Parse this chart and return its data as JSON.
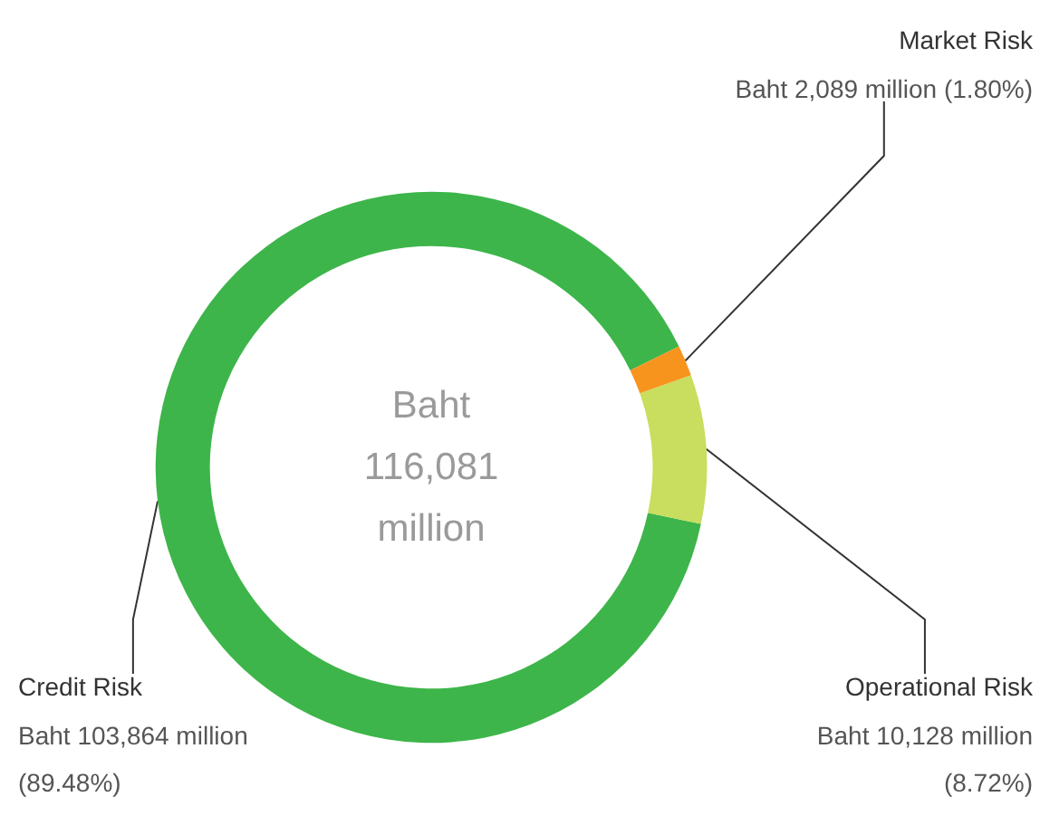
{
  "chart_data": {
    "type": "donut",
    "categories": [
      "Credit Risk",
      "Operational Risk",
      "Market Risk"
    ],
    "values": [
      89.48,
      8.72,
      1.8
    ],
    "colors": [
      "#3db54a",
      "#c9dd5e",
      "#f7941e"
    ],
    "value_labels": [
      "Baht 103,864 million (89.48%)",
      "Baht 10,128 million (8.72%)",
      "Baht 2,089 million (1.80%)"
    ],
    "annotations": [
      "Baht 116,081 million"
    ]
  }
}
